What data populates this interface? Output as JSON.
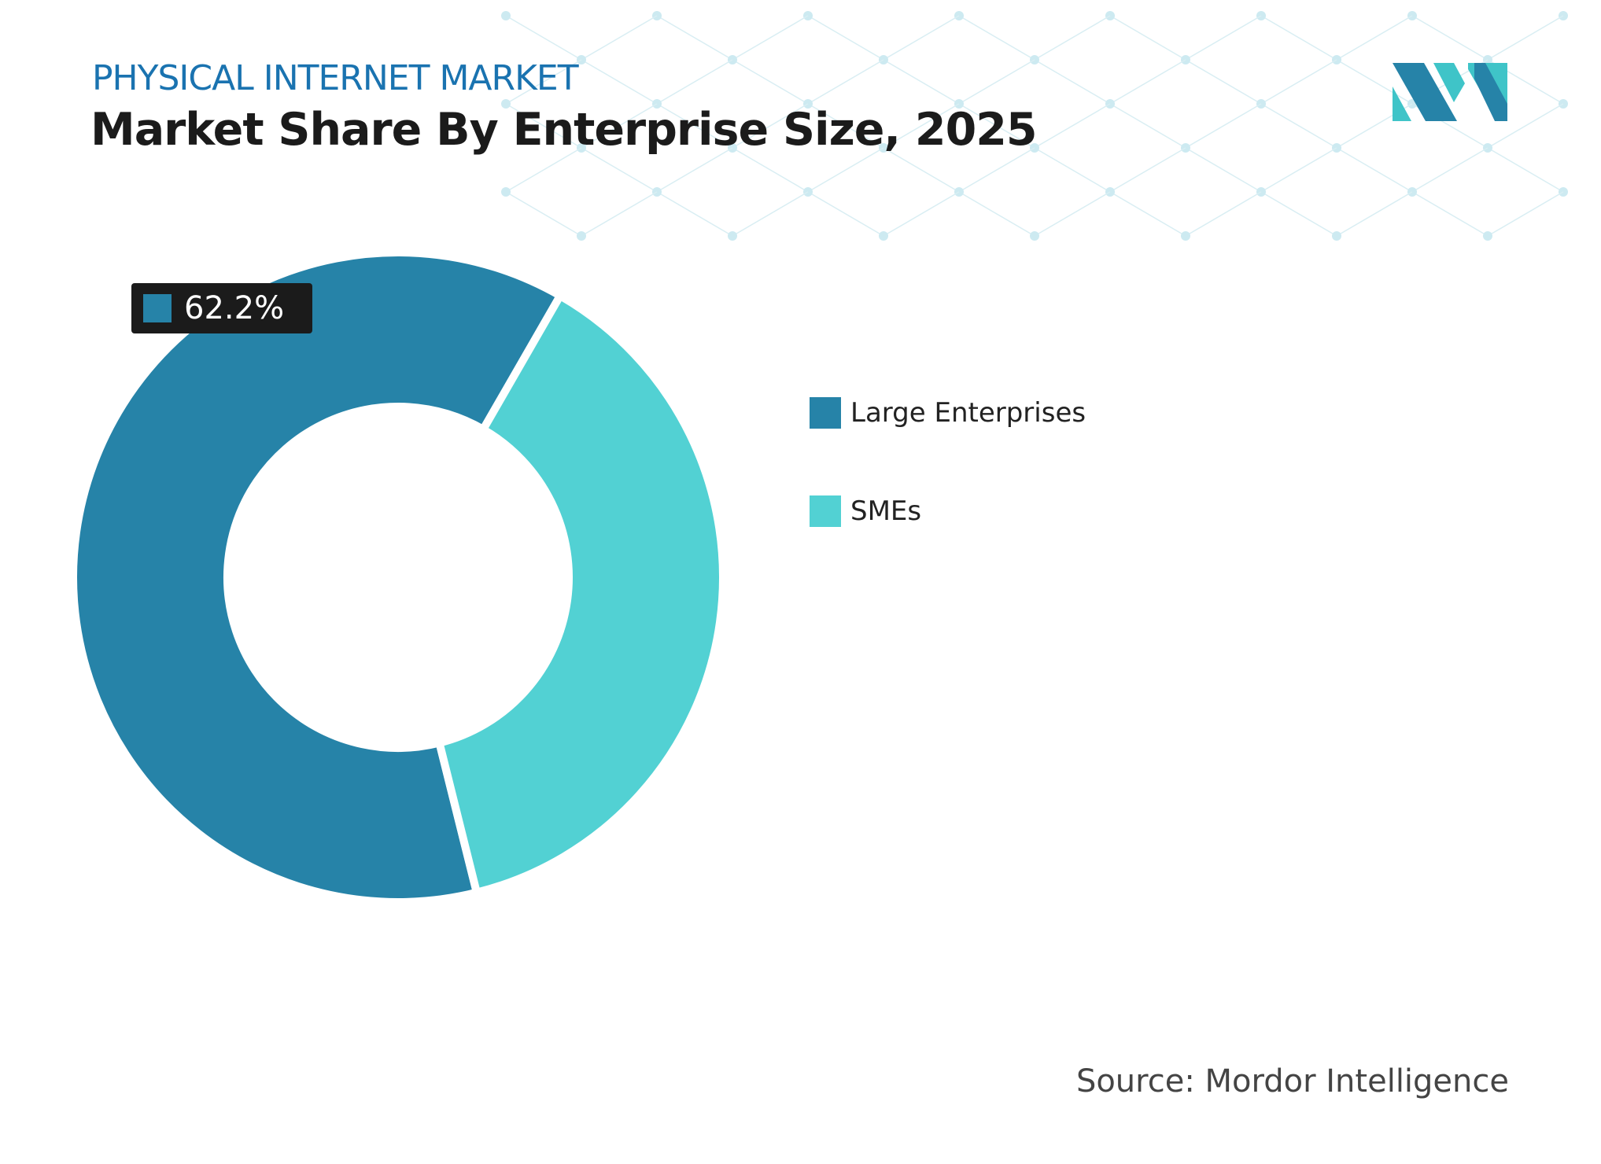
{
  "header": {
    "supertitle": "PHYSICAL INTERNET MARKET",
    "title": "Market Share By Enterprise Size, 2025"
  },
  "source": "Source: Mordor Intelligence",
  "colors": {
    "large": "#2683a8",
    "smes": "#52d1d3",
    "accent": "#1a73b0"
  },
  "chart_data": {
    "type": "pie",
    "subtype": "donut",
    "title": "Market Share By Enterprise Size, 2025",
    "categories": [
      "Large Enterprises",
      "SMEs"
    ],
    "values": [
      62.2,
      37.8
    ],
    "data_labels": [
      {
        "category": "Large Enterprises",
        "text": "62.2%"
      }
    ],
    "legend": {
      "position": "right",
      "entries": [
        "Large Enterprises",
        "SMEs"
      ]
    }
  }
}
